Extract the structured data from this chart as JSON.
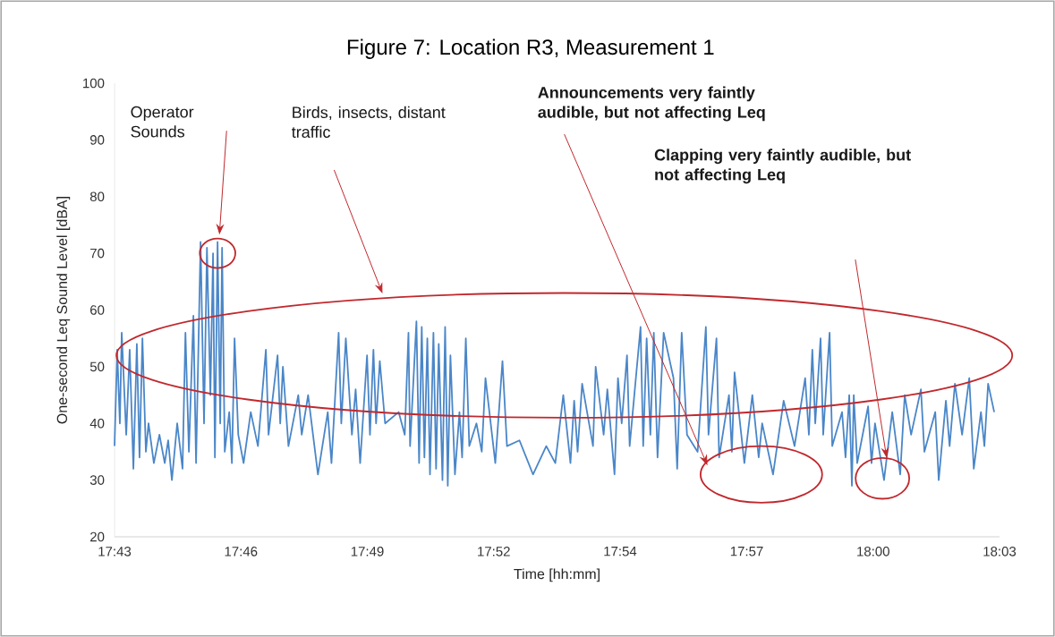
{
  "chart_data": {
    "type": "line",
    "title": "Figure 7: Location R3, Measurement 1",
    "xlabel": "Time [hh:mm]",
    "ylabel": "One-second Leq Sound Level [dBA]",
    "color": "#4a86c8",
    "x": [
      17.7167,
      17.7177,
      17.7187,
      17.7194,
      17.7211,
      17.7224,
      17.7238,
      17.7251,
      17.7261,
      17.7272,
      17.7285,
      17.7295,
      17.7315,
      17.7336,
      17.7356,
      17.7369,
      17.7383,
      17.7403,
      17.7423,
      17.7434,
      17.7447,
      17.7464,
      17.7474,
      17.7491,
      17.7504,
      17.7515,
      17.7528,
      17.7538,
      17.7545,
      17.7555,
      17.7565,
      17.7572,
      17.7582,
      17.7599,
      17.7609,
      17.7619,
      17.7633,
      17.7653,
      17.768,
      17.7707,
      17.7737,
      17.7747,
      17.7781,
      17.7791,
      17.7801,
      17.7822,
      17.7859,
      17.7872,
      17.7896,
      17.7933,
      17.797,
      17.7984,
      17.8011,
      17.8021,
      17.8038,
      17.8061,
      17.8075,
      17.8092,
      17.8118,
      17.8129,
      17.8142,
      17.8152,
      17.8166,
      17.8186,
      17.8237,
      17.826,
      17.8274,
      17.828,
      17.8304,
      17.8314,
      17.8324,
      17.8334,
      17.8345,
      17.8355,
      17.8368,
      17.8378,
      17.8388,
      17.8402,
      17.8412,
      17.8422,
      17.8432,
      17.8449,
      17.8466,
      17.8476,
      17.849,
      17.8503,
      17.853,
      17.855,
      17.8564,
      17.8601,
      17.8628,
      17.8645,
      17.8692,
      17.8743,
      17.8793,
      17.8827,
      17.8857,
      17.8884,
      17.8898,
      17.8911,
      17.8928,
      17.8969,
      17.8979,
      17.9009,
      17.9023,
      17.905,
      17.9063,
      17.9077,
      17.9097,
      17.9107,
      17.9148,
      17.9158,
      17.9171,
      17.9185,
      17.9198,
      17.9212,
      17.9235,
      17.9272,
      17.9286,
      17.9303,
      17.9323,
      17.9363,
      17.9394,
      17.9404,
      17.9434,
      17.9444,
      17.9481,
      17.9492,
      17.9502,
      17.9539,
      17.9569,
      17.9593,
      17.9606,
      17.9647,
      17.9687,
      17.9728,
      17.9768,
      17.9782,
      17.9795,
      17.9806,
      17.9826,
      17.9836,
      17.986,
      17.987,
      17.9907,
      17.992,
      17.9934,
      17.9944,
      17.9951,
      17.9964,
      18.0005,
      18.0018,
      18.0031,
      18.0065,
      18.0096,
      18.0126,
      18.0143,
      18.0167,
      18.0204,
      18.0217,
      18.0258,
      18.0271,
      18.0298,
      18.0312,
      18.0332,
      18.0359,
      18.0386,
      18.0403,
      18.043,
      18.0443,
      18.0457,
      18.048
    ],
    "values": [
      36,
      53,
      40,
      56,
      38,
      53,
      32,
      54,
      34,
      55,
      35,
      40,
      33,
      38,
      33,
      37,
      30,
      40,
      32,
      56,
      35,
      59,
      33,
      72,
      40,
      71,
      45,
      70,
      34,
      72,
      40,
      71,
      35,
      42,
      33,
      55,
      38,
      33,
      42,
      36,
      53,
      38,
      52,
      40,
      50,
      36,
      45,
      38,
      45,
      31,
      42,
      33,
      56,
      40,
      55,
      38,
      46,
      33,
      52,
      38,
      53,
      40,
      51,
      40,
      42,
      38,
      56,
      36,
      58,
      33,
      57,
      34,
      55,
      31,
      56,
      32,
      54,
      30,
      57,
      29,
      52,
      31,
      42,
      34,
      55,
      36,
      40,
      35,
      48,
      33,
      51,
      36,
      37,
      31,
      36,
      33,
      45,
      33,
      44,
      35,
      47,
      36,
      50,
      38,
      46,
      31,
      48,
      40,
      52,
      36,
      57,
      36,
      55,
      38,
      56,
      34,
      56,
      48,
      32,
      56,
      38,
      35,
      57,
      38,
      55,
      34,
      45,
      35,
      49,
      33,
      45,
      34,
      40,
      31,
      44,
      36,
      48,
      38,
      53,
      40,
      55,
      38,
      56,
      36,
      42,
      34,
      45,
      29,
      45,
      33,
      43,
      33,
      40,
      30,
      42,
      31,
      45,
      38,
      46,
      35,
      42,
      30,
      44,
      36,
      47,
      38,
      48,
      32,
      42,
      36,
      47,
      42
    ],
    "xlim": [
      17.7167,
      18.05
    ],
    "ylim": [
      20,
      100
    ],
    "xticks": [
      {
        "value": 17.7167,
        "label": "17:43"
      },
      {
        "value": 17.7643,
        "label": "17:46"
      },
      {
        "value": 17.8119,
        "label": "17:49"
      },
      {
        "value": 17.8595,
        "label": "17:52"
      },
      {
        "value": 17.9071,
        "label": "17:54"
      },
      {
        "value": 17.9548,
        "label": "17:57"
      },
      {
        "value": 18.0024,
        "label": "18:00"
      },
      {
        "value": 18.05,
        "label": "18:03"
      }
    ],
    "yticks": [
      20,
      30,
      40,
      50,
      60,
      70,
      80,
      90,
      100
    ],
    "annotations": [
      "Operator Sounds",
      "Birds, insects, distant traffic",
      "Announcements very faintly audible, but not affecting Leq",
      "Clapping very faintly audible, but not affecting Leq"
    ]
  }
}
